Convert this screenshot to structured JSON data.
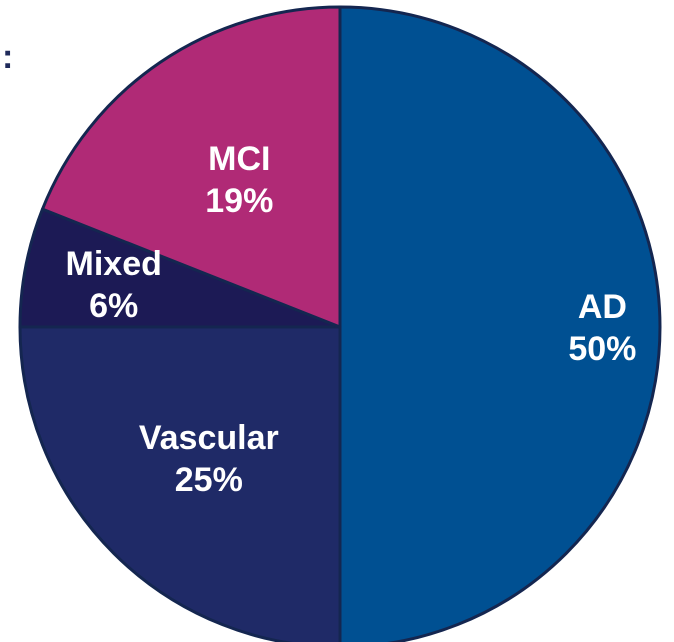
{
  "page": {
    "corner_mark": ":"
  },
  "chart_data": {
    "type": "pie",
    "title": "",
    "slices": [
      {
        "label": "AD",
        "value": 50,
        "value_label": "50%",
        "color": "#005092"
      },
      {
        "label": "Vascular",
        "value": 25,
        "value_label": "25%",
        "color": "#1f2a67"
      },
      {
        "label": "Mixed",
        "value": 6,
        "value_label": "6%",
        "color": "#1c1a55"
      },
      {
        "label": "MCI",
        "value": 19,
        "value_label": "19%",
        "color": "#b02a76"
      }
    ],
    "start_angle_deg": 0,
    "direction": "clockwise",
    "edge_color": "#142650"
  }
}
